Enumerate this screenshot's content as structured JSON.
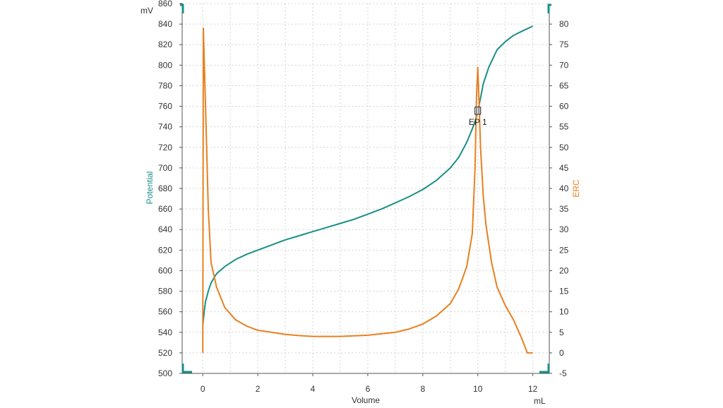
{
  "chart_data": {
    "type": "line",
    "x_unit": "mL",
    "xlabel": "Volume",
    "xlim": [
      -0.75,
      12.6
    ],
    "x_ticks": [
      0,
      2,
      4,
      6,
      8,
      10,
      12
    ],
    "y_left": {
      "label": "Potential",
      "unit": "mV",
      "lim": [
        500,
        860
      ],
      "ticks": [
        500,
        520,
        540,
        560,
        580,
        600,
        620,
        640,
        660,
        680,
        700,
        720,
        740,
        760,
        780,
        800,
        820,
        840,
        860
      ],
      "color": "#1a8f87"
    },
    "y_right": {
      "label": "ERC",
      "lim": [
        -5,
        85
      ],
      "ticks": [
        -5,
        0,
        5,
        10,
        15,
        20,
        25,
        30,
        35,
        40,
        45,
        50,
        55,
        60,
        65,
        70,
        75,
        80
      ],
      "color": "#e8801f"
    },
    "grid": true,
    "series": [
      {
        "name": "Potential",
        "axis": "left",
        "color": "#1a8f87",
        "x": [
          0.0,
          0.05,
          0.1,
          0.2,
          0.3,
          0.5,
          0.8,
          1.2,
          1.6,
          2.0,
          2.5,
          3.0,
          3.5,
          4.0,
          4.5,
          5.0,
          5.5,
          6.0,
          6.5,
          7.0,
          7.5,
          8.0,
          8.5,
          9.0,
          9.3,
          9.6,
          9.8,
          9.9,
          10.0,
          10.1,
          10.2,
          10.4,
          10.7,
          11.0,
          11.3,
          11.6,
          12.0
        ],
        "y": [
          547,
          560,
          570,
          580,
          588,
          597,
          604,
          611,
          616,
          620,
          625,
          630,
          634,
          638,
          642,
          646,
          650,
          655,
          660,
          666,
          672,
          679,
          688,
          700,
          710,
          725,
          738,
          745,
          755,
          768,
          782,
          798,
          815,
          823,
          829,
          833,
          838
        ]
      },
      {
        "name": "ERC",
        "axis": "right",
        "color": "#e8801f",
        "x": [
          0.0,
          0.02,
          0.1,
          0.2,
          0.3,
          0.5,
          0.8,
          1.2,
          1.6,
          2.0,
          2.5,
          3.0,
          3.5,
          4.0,
          5.0,
          6.0,
          7.0,
          7.5,
          8.0,
          8.5,
          9.0,
          9.3,
          9.6,
          9.8,
          9.9,
          9.95,
          10.0,
          10.05,
          10.1,
          10.2,
          10.3,
          10.5,
          10.7,
          11.0,
          11.3,
          11.6,
          11.8,
          12.0
        ],
        "y": [
          0,
          79,
          60,
          35,
          22,
          16,
          11,
          8,
          6.5,
          5.5,
          5,
          4.5,
          4.2,
          4,
          4,
          4.3,
          5,
          5.8,
          7,
          9,
          12,
          15.5,
          21,
          29,
          45,
          62,
          69.5,
          60,
          50,
          38,
          31,
          22,
          16,
          11.5,
          8,
          3.5,
          0,
          0
        ]
      }
    ],
    "annotations": [
      {
        "text": "EP 1",
        "x": 10.0,
        "y_left": 755,
        "marker": "tick"
      }
    ]
  }
}
